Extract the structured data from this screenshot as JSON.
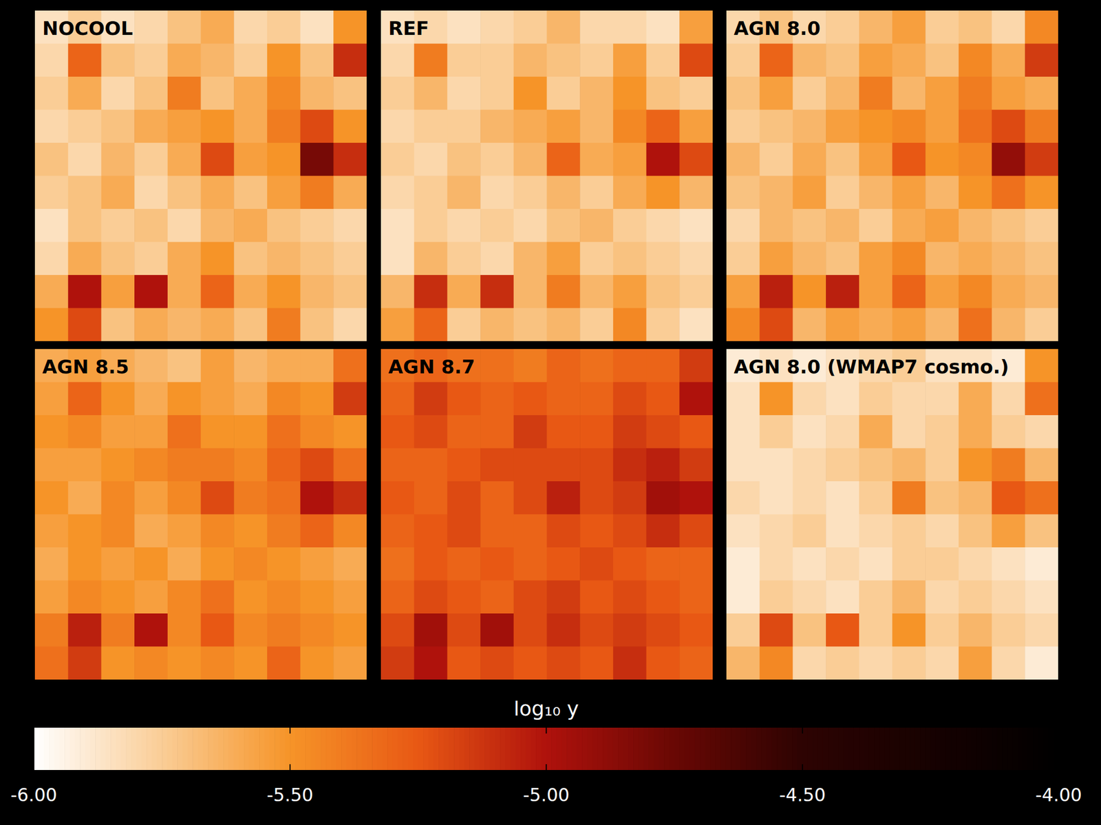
{
  "chart_data": {
    "type": "heatmap",
    "colorbar": {
      "label": "log₁₀ y",
      "range": [
        -6,
        -4
      ],
      "ticks": [
        {
          "value": -6,
          "label": "-6.00"
        },
        {
          "value": -5.5,
          "label": "-5.50"
        },
        {
          "value": -5,
          "label": "-5.00"
        },
        {
          "value": -4.5,
          "label": "-4.50"
        },
        {
          "value": -4,
          "label": "-4.00"
        }
      ]
    },
    "panels": [
      {
        "title": "NOCOOL",
        "cells": [
          [
            -5.85,
            -5.75,
            -5.85,
            -5.8,
            -5.7,
            -5.6,
            -5.8,
            -5.75,
            -5.85,
            -5.5
          ],
          [
            -5.8,
            -5.3,
            -5.7,
            -5.75,
            -5.6,
            -5.65,
            -5.75,
            -5.5,
            -5.7,
            -5.1
          ],
          [
            -5.75,
            -5.6,
            -5.8,
            -5.7,
            -5.4,
            -5.7,
            -5.6,
            -5.45,
            -5.65,
            -5.7
          ],
          [
            -5.8,
            -5.75,
            -5.7,
            -5.6,
            -5.55,
            -5.5,
            -5.6,
            -5.4,
            -5.2,
            -5.5
          ],
          [
            -5.7,
            -5.8,
            -5.65,
            -5.75,
            -5.6,
            -5.2,
            -5.55,
            -5.5,
            -4.8,
            -5.1
          ],
          [
            -5.75,
            -5.7,
            -5.6,
            -5.8,
            -5.7,
            -5.6,
            -5.7,
            -5.55,
            -5.4,
            -5.6
          ],
          [
            -5.85,
            -5.7,
            -5.75,
            -5.7,
            -5.8,
            -5.65,
            -5.6,
            -5.7,
            -5.75,
            -5.8
          ],
          [
            -5.8,
            -5.6,
            -5.7,
            -5.75,
            -5.6,
            -5.5,
            -5.7,
            -5.65,
            -5.7,
            -5.75
          ],
          [
            -5.6,
            -5.0,
            -5.55,
            -5.0,
            -5.6,
            -5.3,
            -5.6,
            -5.5,
            -5.65,
            -5.7
          ],
          [
            -5.5,
            -5.2,
            -5.7,
            -5.6,
            -5.65,
            -5.6,
            -5.7,
            -5.4,
            -5.7,
            -5.8
          ]
        ]
      },
      {
        "title": "REF",
        "cells": [
          [
            -5.85,
            -5.8,
            -5.85,
            -5.8,
            -5.75,
            -5.65,
            -5.8,
            -5.8,
            -5.85,
            -5.55
          ],
          [
            -5.8,
            -5.4,
            -5.75,
            -5.75,
            -5.65,
            -5.7,
            -5.75,
            -5.55,
            -5.75,
            -5.2
          ],
          [
            -5.75,
            -5.65,
            -5.8,
            -5.75,
            -5.5,
            -5.75,
            -5.65,
            -5.5,
            -5.7,
            -5.75
          ],
          [
            -5.8,
            -5.75,
            -5.75,
            -5.65,
            -5.6,
            -5.55,
            -5.65,
            -5.45,
            -5.3,
            -5.55
          ],
          [
            -5.75,
            -5.8,
            -5.7,
            -5.75,
            -5.65,
            -5.3,
            -5.6,
            -5.55,
            -5.0,
            -5.2
          ],
          [
            -5.8,
            -5.75,
            -5.65,
            -5.8,
            -5.75,
            -5.65,
            -5.75,
            -5.6,
            -5.5,
            -5.65
          ],
          [
            -5.85,
            -5.75,
            -5.8,
            -5.75,
            -5.8,
            -5.7,
            -5.65,
            -5.75,
            -5.8,
            -5.85
          ],
          [
            -5.85,
            -5.65,
            -5.75,
            -5.8,
            -5.65,
            -5.55,
            -5.75,
            -5.7,
            -5.75,
            -5.8
          ],
          [
            -5.65,
            -5.1,
            -5.6,
            -5.1,
            -5.65,
            -5.4,
            -5.65,
            -5.55,
            -5.7,
            -5.75
          ],
          [
            -5.55,
            -5.3,
            -5.75,
            -5.65,
            -5.7,
            -5.65,
            -5.75,
            -5.45,
            -5.75,
            -5.85
          ]
        ]
      },
      {
        "title": "AGN 8.0",
        "cells": [
          [
            -5.8,
            -5.7,
            -5.8,
            -5.75,
            -5.65,
            -5.55,
            -5.75,
            -5.7,
            -5.8,
            -5.45
          ],
          [
            -5.75,
            -5.3,
            -5.65,
            -5.7,
            -5.55,
            -5.6,
            -5.7,
            -5.45,
            -5.6,
            -5.15
          ],
          [
            -5.7,
            -5.55,
            -5.75,
            -5.65,
            -5.4,
            -5.65,
            -5.55,
            -5.4,
            -5.55,
            -5.6
          ],
          [
            -5.75,
            -5.7,
            -5.65,
            -5.55,
            -5.5,
            -5.45,
            -5.55,
            -5.35,
            -5.2,
            -5.4
          ],
          [
            -5.65,
            -5.75,
            -5.6,
            -5.7,
            -5.55,
            -5.25,
            -5.5,
            -5.45,
            -4.9,
            -5.15
          ],
          [
            -5.7,
            -5.65,
            -5.55,
            -5.75,
            -5.65,
            -5.55,
            -5.65,
            -5.5,
            -5.35,
            -5.5
          ],
          [
            -5.8,
            -5.65,
            -5.7,
            -5.65,
            -5.75,
            -5.6,
            -5.55,
            -5.65,
            -5.7,
            -5.75
          ],
          [
            -5.75,
            -5.55,
            -5.65,
            -5.7,
            -5.55,
            -5.45,
            -5.65,
            -5.6,
            -5.65,
            -5.7
          ],
          [
            -5.55,
            -5.05,
            -5.5,
            -5.05,
            -5.55,
            -5.3,
            -5.55,
            -5.45,
            -5.6,
            -5.65
          ],
          [
            -5.45,
            -5.2,
            -5.65,
            -5.55,
            -5.6,
            -5.55,
            -5.65,
            -5.35,
            -5.65,
            -5.75
          ]
        ]
      },
      {
        "title": "AGN 8.5",
        "cells": [
          [
            -5.6,
            -5.55,
            -5.6,
            -5.65,
            -5.7,
            -5.55,
            -5.65,
            -5.6,
            -5.6,
            -5.35
          ],
          [
            -5.55,
            -5.3,
            -5.5,
            -5.6,
            -5.5,
            -5.55,
            -5.6,
            -5.45,
            -5.5,
            -5.15
          ],
          [
            -5.5,
            -5.45,
            -5.55,
            -5.55,
            -5.35,
            -5.5,
            -5.5,
            -5.35,
            -5.45,
            -5.5
          ],
          [
            -5.55,
            -5.55,
            -5.5,
            -5.45,
            -5.4,
            -5.4,
            -5.45,
            -5.3,
            -5.2,
            -5.35
          ],
          [
            -5.5,
            -5.6,
            -5.45,
            -5.55,
            -5.45,
            -5.2,
            -5.4,
            -5.35,
            -5.0,
            -5.1
          ],
          [
            -5.55,
            -5.5,
            -5.45,
            -5.6,
            -5.55,
            -5.45,
            -5.5,
            -5.4,
            -5.3,
            -5.45
          ],
          [
            -5.6,
            -5.5,
            -5.55,
            -5.5,
            -5.6,
            -5.5,
            -5.45,
            -5.5,
            -5.55,
            -5.6
          ],
          [
            -5.55,
            -5.45,
            -5.5,
            -5.55,
            -5.45,
            -5.35,
            -5.5,
            -5.45,
            -5.5,
            -5.55
          ],
          [
            -5.4,
            -5.05,
            -5.4,
            -5.0,
            -5.45,
            -5.25,
            -5.45,
            -5.4,
            -5.45,
            -5.5
          ],
          [
            -5.35,
            -5.15,
            -5.5,
            -5.45,
            -5.5,
            -5.45,
            -5.5,
            -5.3,
            -5.5,
            -5.55
          ]
        ]
      },
      {
        "title": "AGN 8.7",
        "cells": [
          [
            -5.35,
            -5.3,
            -5.35,
            -5.35,
            -5.4,
            -5.3,
            -5.35,
            -5.3,
            -5.3,
            -5.15
          ],
          [
            -5.3,
            -5.15,
            -5.25,
            -5.3,
            -5.25,
            -5.3,
            -5.3,
            -5.2,
            -5.25,
            -5.0
          ],
          [
            -5.25,
            -5.2,
            -5.3,
            -5.3,
            -5.15,
            -5.25,
            -5.25,
            -5.15,
            -5.2,
            -5.25
          ],
          [
            -5.3,
            -5.3,
            -5.25,
            -5.2,
            -5.2,
            -5.2,
            -5.2,
            -5.1,
            -5.05,
            -5.15
          ],
          [
            -5.25,
            -5.3,
            -5.2,
            -5.3,
            -5.2,
            -5.05,
            -5.2,
            -5.15,
            -4.95,
            -5.0
          ],
          [
            -5.3,
            -5.25,
            -5.2,
            -5.3,
            -5.3,
            -5.2,
            -5.25,
            -5.2,
            -5.1,
            -5.2
          ],
          [
            -5.35,
            -5.25,
            -5.3,
            -5.25,
            -5.3,
            -5.25,
            -5.2,
            -5.25,
            -5.3,
            -5.3
          ],
          [
            -5.3,
            -5.2,
            -5.25,
            -5.3,
            -5.2,
            -5.15,
            -5.25,
            -5.2,
            -5.25,
            -5.3
          ],
          [
            -5.2,
            -4.95,
            -5.2,
            -4.95,
            -5.2,
            -5.1,
            -5.2,
            -5.15,
            -5.2,
            -5.25
          ],
          [
            -5.15,
            -5.0,
            -5.25,
            -5.2,
            -5.25,
            -5.2,
            -5.25,
            -5.1,
            -5.25,
            -5.3
          ]
        ]
      },
      {
        "title": "AGN 8.0 (WMAP7 cosmo.)",
        "cells": [
          [
            -5.9,
            -5.85,
            -5.9,
            -5.85,
            -5.8,
            -5.75,
            -5.85,
            -5.85,
            -5.9,
            -5.5
          ],
          [
            -5.85,
            -5.5,
            -5.8,
            -5.85,
            -5.75,
            -5.8,
            -5.8,
            -5.6,
            -5.8,
            -5.35
          ],
          [
            -5.85,
            -5.75,
            -5.85,
            -5.8,
            -5.6,
            -5.8,
            -5.75,
            -5.6,
            -5.75,
            -5.8
          ],
          [
            -5.85,
            -5.85,
            -5.8,
            -5.75,
            -5.7,
            -5.65,
            -5.75,
            -5.5,
            -5.4,
            -5.65
          ],
          [
            -5.8,
            -5.85,
            -5.8,
            -5.85,
            -5.75,
            -5.4,
            -5.7,
            -5.65,
            -5.25,
            -5.35
          ],
          [
            -5.85,
            -5.8,
            -5.75,
            -5.85,
            -5.8,
            -5.75,
            -5.8,
            -5.7,
            -5.55,
            -5.7
          ],
          [
            -5.9,
            -5.8,
            -5.85,
            -5.8,
            -5.85,
            -5.75,
            -5.75,
            -5.8,
            -5.85,
            -5.9
          ],
          [
            -5.9,
            -5.75,
            -5.8,
            -5.85,
            -5.75,
            -5.65,
            -5.8,
            -5.75,
            -5.8,
            -5.85
          ],
          [
            -5.75,
            -5.2,
            -5.7,
            -5.25,
            -5.75,
            -5.5,
            -5.75,
            -5.65,
            -5.75,
            -5.8
          ],
          [
            -5.65,
            -5.45,
            -5.8,
            -5.75,
            -5.8,
            -5.75,
            -5.8,
            -5.55,
            -5.8,
            -5.9
          ]
        ]
      }
    ]
  }
}
